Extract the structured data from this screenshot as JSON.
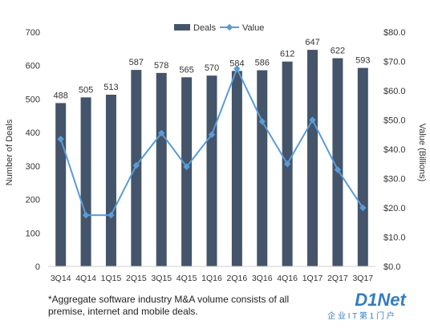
{
  "chart_data": {
    "type": "bar",
    "categories": [
      "3Q14",
      "4Q14",
      "1Q15",
      "2Q15",
      "3Q15",
      "4Q15",
      "1Q16",
      "2Q16",
      "3Q16",
      "4Q16",
      "1Q17",
      "2Q17",
      "3Q17"
    ],
    "series": [
      {
        "name": "Deals",
        "type": "bar",
        "axis": "left",
        "values": [
          488,
          505,
          513,
          587,
          578,
          565,
          570,
          584,
          586,
          612,
          647,
          622,
          593
        ]
      },
      {
        "name": "Value",
        "type": "line",
        "axis": "right",
        "values": [
          43.5,
          17.5,
          17.5,
          34.5,
          45.5,
          34,
          45,
          67.5,
          49.5,
          35,
          50,
          33,
          20
        ]
      }
    ],
    "ylabel": "Number of Deals",
    "y2label": "Value (Billions)",
    "ylim": [
      0,
      700
    ],
    "y2lim": [
      0,
      80
    ],
    "yticks": [
      "0",
      "100",
      "200",
      "300",
      "400",
      "500",
      "600",
      "700"
    ],
    "y2ticks": [
      "$0.0",
      "$10.0",
      "$20.0",
      "$30.0",
      "$40.0",
      "$50.0",
      "$60.0",
      "$70.0",
      "$80.0"
    ],
    "legend_position": "top-center",
    "grid": false,
    "colors": {
      "bar": "#44546a",
      "line": "#5b9bd5"
    }
  },
  "footnote": {
    "line1": "*Aggregate software industry M&A volume consists of all",
    "line2": "premise, internet and mobile deals."
  },
  "watermark": {
    "brand": "D1Net",
    "subtitle": "企 业 I T 第 1 门 户"
  }
}
